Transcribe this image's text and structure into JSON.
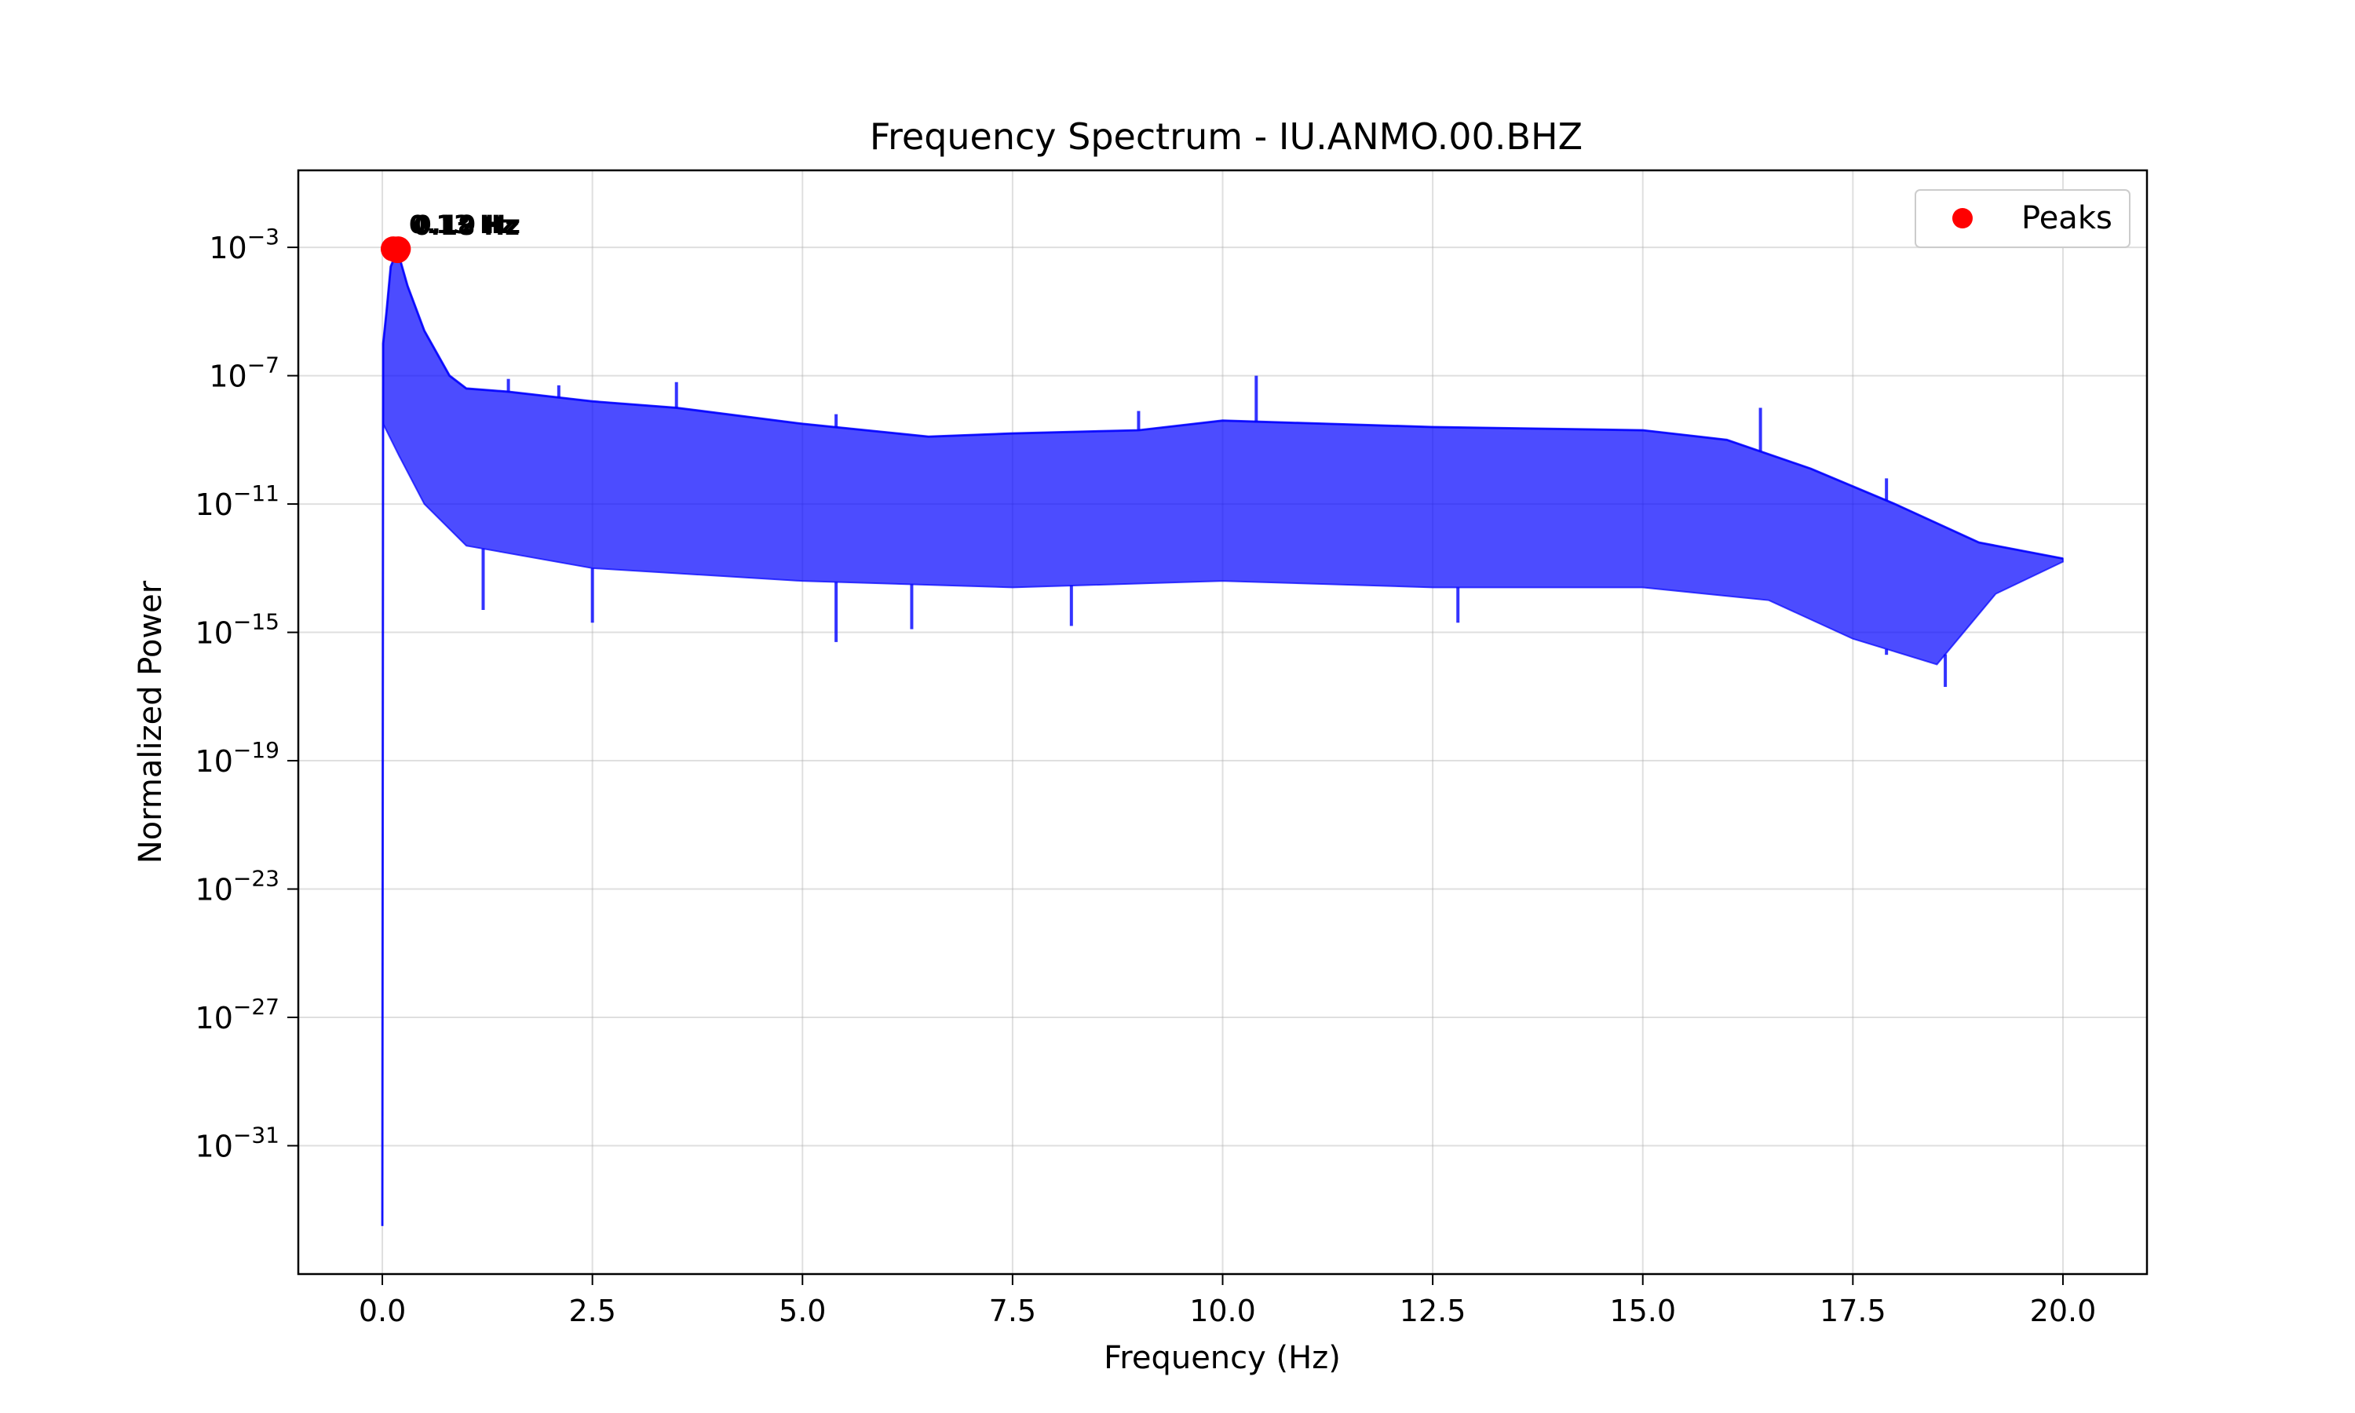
{
  "chart_data": {
    "type": "line",
    "title": "Frequency Spectrum - IU.ANMO.00.BHZ",
    "xlabel": "Frequency (Hz)",
    "ylabel": "Normalized Power",
    "xlim": [
      -1.0,
      21.0
    ],
    "ylim_log10": [
      -35,
      -0.6
    ],
    "y_scale": "log",
    "grid": true,
    "legend_position": "top-right",
    "x_ticks": [
      {
        "value": 0.0,
        "label": "0.0"
      },
      {
        "value": 2.5,
        "label": "2.5"
      },
      {
        "value": 5.0,
        "label": "5.0"
      },
      {
        "value": 7.5,
        "label": "7.5"
      },
      {
        "value": 10.0,
        "label": "10.0"
      },
      {
        "value": 12.5,
        "label": "12.5"
      },
      {
        "value": 15.0,
        "label": "15.0"
      },
      {
        "value": 17.5,
        "label": "17.5"
      },
      {
        "value": 20.0,
        "label": "20.0"
      }
    ],
    "y_ticks": [
      {
        "exp": -3,
        "base": "10",
        "sup": "−3"
      },
      {
        "exp": -7,
        "base": "10",
        "sup": "−7"
      },
      {
        "exp": -11,
        "base": "10",
        "sup": "−11"
      },
      {
        "exp": -15,
        "base": "10",
        "sup": "−15"
      },
      {
        "exp": -19,
        "base": "10",
        "sup": "−19"
      },
      {
        "exp": -23,
        "base": "10",
        "sup": "−23"
      },
      {
        "exp": -27,
        "base": "10",
        "sup": "−27"
      },
      {
        "exp": -31,
        "base": "10",
        "sup": "−31"
      }
    ],
    "series": [
      {
        "color": "#0000ff",
        "upper_envelope": [
          {
            "x": 0.0,
            "y": -33.5
          },
          {
            "x": 0.01,
            "y": -6.0
          },
          {
            "x": 0.05,
            "y": -5.0
          },
          {
            "x": 0.1,
            "y": -3.6
          },
          {
            "x": 0.18,
            "y": -3.1
          },
          {
            "x": 0.3,
            "y": -4.2
          },
          {
            "x": 0.5,
            "y": -5.6
          },
          {
            "x": 0.8,
            "y": -7.0
          },
          {
            "x": 1.0,
            "y": -7.4
          },
          {
            "x": 1.5,
            "y": -7.5
          },
          {
            "x": 2.5,
            "y": -7.8
          },
          {
            "x": 3.5,
            "y": -8.0
          },
          {
            "x": 5.0,
            "y": -8.5
          },
          {
            "x": 6.5,
            "y": -8.9
          },
          {
            "x": 7.5,
            "y": -8.8
          },
          {
            "x": 9.0,
            "y": -8.7
          },
          {
            "x": 10.0,
            "y": -8.4
          },
          {
            "x": 12.5,
            "y": -8.6
          },
          {
            "x": 15.0,
            "y": -8.7
          },
          {
            "x": 16.0,
            "y": -9.0
          },
          {
            "x": 17.0,
            "y": -9.9
          },
          {
            "x": 18.0,
            "y": -11.0
          },
          {
            "x": 19.0,
            "y": -12.2
          },
          {
            "x": 20.0,
            "y": -12.7
          }
        ],
        "lower_envelope": [
          {
            "x": 0.0,
            "y": -33.5
          },
          {
            "x": 0.01,
            "y": -8.5
          },
          {
            "x": 0.2,
            "y": -9.5
          },
          {
            "x": 0.5,
            "y": -11.0
          },
          {
            "x": 1.0,
            "y": -12.3
          },
          {
            "x": 2.5,
            "y": -13.0
          },
          {
            "x": 5.0,
            "y": -13.4
          },
          {
            "x": 7.5,
            "y": -13.6
          },
          {
            "x": 10.0,
            "y": -13.4
          },
          {
            "x": 12.5,
            "y": -13.6
          },
          {
            "x": 15.0,
            "y": -13.6
          },
          {
            "x": 16.5,
            "y": -14.0
          },
          {
            "x": 17.5,
            "y": -15.2
          },
          {
            "x": 18.5,
            "y": -16.0
          },
          {
            "x": 19.2,
            "y": -13.8
          },
          {
            "x": 20.0,
            "y": -12.8
          }
        ],
        "spikes_up": [
          {
            "x": 1.5,
            "y": -7.1
          },
          {
            "x": 2.1,
            "y": -7.3
          },
          {
            "x": 3.5,
            "y": -7.2
          },
          {
            "x": 5.4,
            "y": -8.2
          },
          {
            "x": 9.0,
            "y": -8.1
          },
          {
            "x": 10.4,
            "y": -7.0
          },
          {
            "x": 16.4,
            "y": -8.0
          },
          {
            "x": 17.9,
            "y": -10.2
          }
        ],
        "spikes_down": [
          {
            "x": 1.2,
            "y": -14.3
          },
          {
            "x": 2.5,
            "y": -14.7
          },
          {
            "x": 5.4,
            "y": -15.3
          },
          {
            "x": 6.3,
            "y": -14.9
          },
          {
            "x": 8.2,
            "y": -14.8
          },
          {
            "x": 12.8,
            "y": -14.7
          },
          {
            "x": 17.9,
            "y": -15.7
          },
          {
            "x": 18.6,
            "y": -16.7
          }
        ]
      }
    ],
    "peaks": {
      "legend_label": "Peaks",
      "color": "#ff0000",
      "points": [
        {
          "x": 0.13,
          "y": -3.05,
          "label": "0.13 Hz"
        },
        {
          "x": 0.18,
          "y": -3.1,
          "label": "0.18 Hz"
        },
        {
          "x": 0.19,
          "y": -3.05,
          "label": "0.19 Hz"
        }
      ]
    }
  }
}
